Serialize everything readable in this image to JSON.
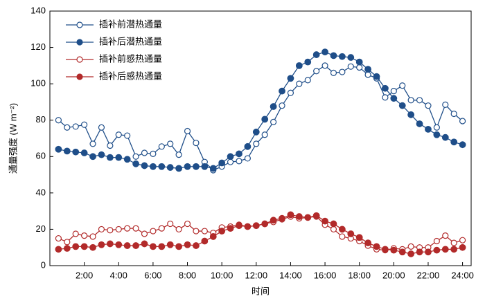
{
  "chart_data": {
    "type": "line",
    "xlabel": "时间",
    "ylabel": "通量强度 (W m⁻²)",
    "x": [
      0.5,
      1,
      1.5,
      2,
      2.5,
      3,
      3.5,
      4,
      4.5,
      5,
      5.5,
      6,
      6.5,
      7,
      7.5,
      8,
      8.5,
      9,
      9.5,
      10,
      10.5,
      11,
      11.5,
      12,
      12.5,
      13,
      13.5,
      14,
      14.5,
      15,
      15.5,
      16,
      16.5,
      17,
      17.5,
      18,
      18.5,
      19,
      19.5,
      20,
      20.5,
      21,
      21.5,
      22,
      22.5,
      23,
      23.5,
      24
    ],
    "xlim": [
      0,
      24.5
    ],
    "xticks": [
      {
        "value": 2,
        "label": "2:00"
      },
      {
        "value": 4,
        "label": "4:00"
      },
      {
        "value": 6,
        "label": "6:00"
      },
      {
        "value": 8,
        "label": "8:00"
      },
      {
        "value": 10,
        "label": "10:00"
      },
      {
        "value": 12,
        "label": "12:00"
      },
      {
        "value": 14,
        "label": "14:00"
      },
      {
        "value": 16,
        "label": "16:00"
      },
      {
        "value": 18,
        "label": "18:00"
      },
      {
        "value": 20,
        "label": "20:00"
      },
      {
        "value": 22,
        "label": "22:00"
      },
      {
        "value": 24,
        "label": "24:00"
      }
    ],
    "ylim": [
      0,
      140
    ],
    "yticks": [
      0,
      20,
      40,
      60,
      80,
      100,
      120,
      140
    ],
    "legend": "upper left",
    "series": [
      {
        "name": "插补前潜热通量",
        "color": "#1f4e89",
        "marker": "open",
        "values": [
          80,
          76,
          76.5,
          77.5,
          67,
          76,
          66,
          72,
          71.5,
          60,
          62,
          61.5,
          65.5,
          67,
          61,
          74,
          67.5,
          57,
          52.5,
          54.5,
          57,
          57.5,
          59,
          67,
          72,
          79,
          88,
          95,
          100,
          102,
          107,
          110,
          106,
          106.5,
          109.5,
          109,
          105,
          103,
          92.5,
          96,
          99,
          91,
          91,
          88,
          76,
          88.5,
          83.5,
          79.5
        ]
      },
      {
        "name": "插补后潜热通量",
        "color": "#1f4e89",
        "marker": "filled",
        "values": [
          64,
          63,
          62.5,
          62,
          60,
          61,
          59.5,
          59.5,
          58.5,
          56,
          55,
          54.5,
          54.5,
          54,
          53.5,
          54.5,
          54.5,
          54.5,
          53.5,
          56.5,
          60,
          61.5,
          65.5,
          73.5,
          80.5,
          87.5,
          96,
          103,
          110,
          112,
          116,
          117.5,
          115.5,
          115,
          114.5,
          112,
          108,
          104,
          97.5,
          92,
          88,
          83,
          78,
          75,
          72,
          70.5,
          68,
          66.5
        ]
      },
      {
        "name": "插补前感热通量",
        "color": "#b22a2a",
        "marker": "open",
        "values": [
          15,
          13,
          17.5,
          16.5,
          16,
          20,
          19.5,
          20,
          20.5,
          20.5,
          17.5,
          19,
          20.5,
          23,
          20,
          23,
          19,
          19,
          18,
          21,
          21.5,
          22.5,
          21.5,
          22,
          23,
          24,
          25.5,
          27,
          26,
          26.5,
          27,
          22.5,
          20,
          16,
          15,
          13.5,
          11,
          9,
          8.5,
          9.5,
          9,
          10.5,
          10,
          10,
          13.5,
          16.5,
          12.5,
          14
        ]
      },
      {
        "name": "插补后感热通量",
        "color": "#b22a2a",
        "marker": "filled",
        "values": [
          9,
          9.5,
          10.5,
          10.5,
          10,
          11.5,
          12,
          11.5,
          11,
          11,
          12,
          10.5,
          10.5,
          11.5,
          10.5,
          11.5,
          11,
          13.5,
          16,
          19,
          20.5,
          22,
          21.5,
          22,
          23,
          25,
          26,
          28,
          27,
          26.5,
          27.5,
          24.5,
          23,
          20,
          17.5,
          15.5,
          12.5,
          10.5,
          9,
          8.5,
          7.5,
          6.5,
          7.5,
          7.5,
          8.5,
          9,
          9,
          10
        ]
      }
    ]
  }
}
